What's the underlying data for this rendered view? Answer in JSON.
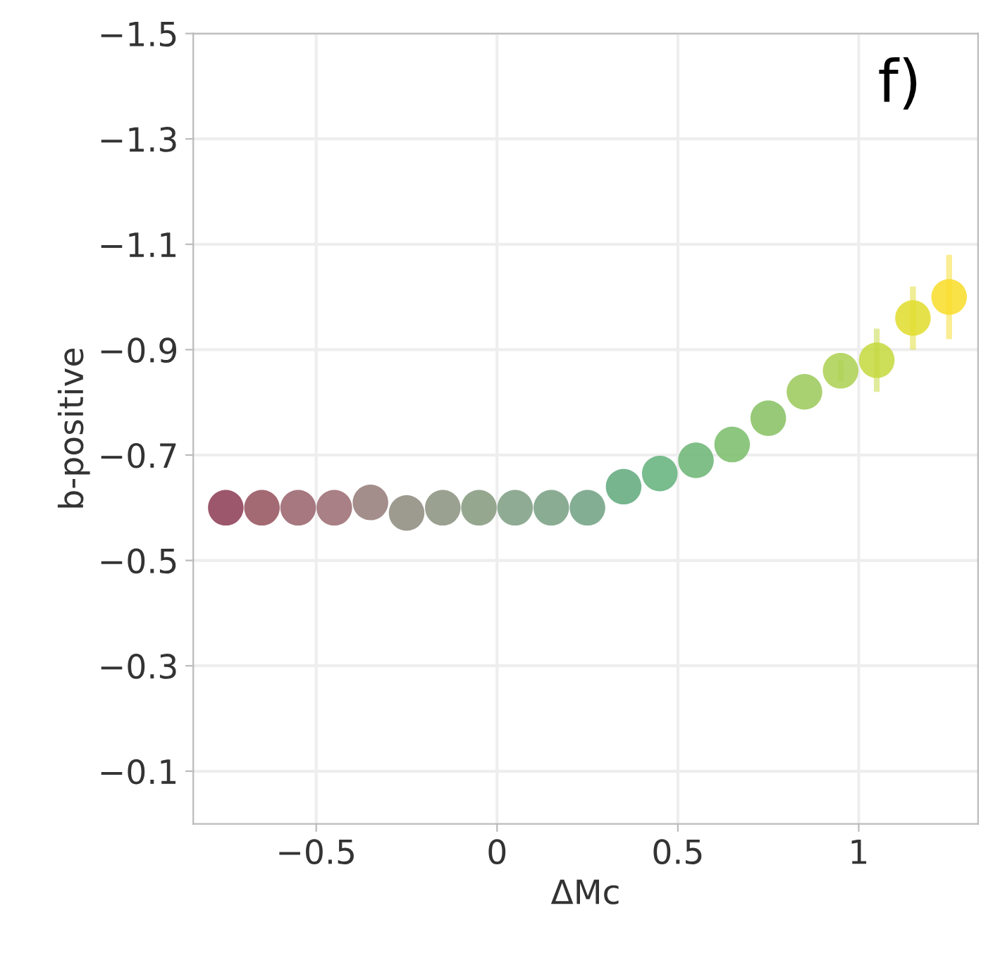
{
  "chart_data": {
    "type": "scatter",
    "xlabel": "ΔMc",
    "ylabel": "b-positive",
    "annotations": [
      "f)"
    ],
    "x": [
      -0.75,
      -0.65,
      -0.55,
      -0.45,
      -0.35,
      -0.25,
      -0.15,
      -0.05,
      0.05,
      0.15,
      0.25,
      0.35,
      0.45,
      0.55,
      0.65,
      0.75,
      0.85,
      0.95,
      1.05,
      1.15,
      1.25
    ],
    "values": [
      -0.6,
      -0.6,
      -0.6,
      -0.6,
      -0.61,
      -0.59,
      -0.6,
      -0.6,
      -0.6,
      -0.6,
      -0.6,
      -0.64,
      -0.665,
      -0.69,
      -0.72,
      -0.77,
      -0.82,
      -0.86,
      -0.88,
      -0.96,
      -1.0
    ],
    "errors": [
      null,
      null,
      null,
      null,
      null,
      null,
      null,
      null,
      null,
      null,
      null,
      null,
      null,
      null,
      null,
      null,
      null,
      0.02,
      0.06,
      0.06,
      0.08
    ],
    "colors": [
      "#8b3a52",
      "#94505a",
      "#98606a",
      "#9a6a70",
      "#947a78",
      "#8c8a7c",
      "#88907c",
      "#84987c",
      "#7c9c80",
      "#769e80",
      "#6ea080",
      "#5ea87a",
      "#62b07a",
      "#6ab472",
      "#78bc68",
      "#86c060",
      "#9ac858",
      "#acd050",
      "#c4d83c",
      "#e0dc2c",
      "#f8dc28"
    ],
    "marker": "circle",
    "xlim": [
      -0.84,
      1.33
    ],
    "ylim": [
      0,
      -1.5
    ],
    "xticks": [
      {
        "value": -0.5,
        "label": "−0.5"
      },
      0,
      0.5,
      1
    ],
    "yticks": [
      {
        "value": -1.5,
        "label": "−1.5"
      },
      {
        "value": -1.3,
        "label": "−1.3"
      },
      {
        "value": -1.1,
        "label": "−1.1"
      },
      {
        "value": -0.9,
        "label": "−0.9"
      },
      {
        "value": -0.7,
        "label": "−0.7"
      },
      {
        "value": -0.5,
        "label": "−0.5"
      },
      {
        "value": -0.3,
        "label": "−0.3"
      },
      {
        "value": -0.1,
        "label": "−0.1"
      }
    ],
    "grid": true
  }
}
